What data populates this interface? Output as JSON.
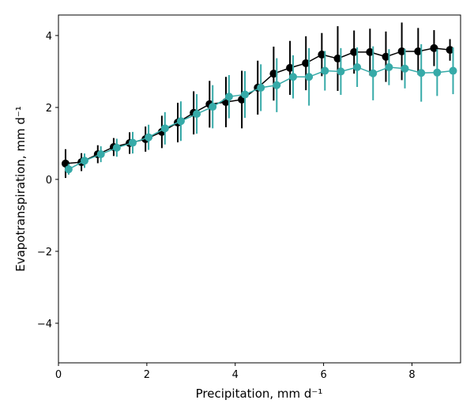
{
  "chart_data": {
    "type": "errorbar-line",
    "x_label": "Precipitation,  mm d⁻¹",
    "y_label": "Evapotranspiration,  mm d⁻¹",
    "xlim": [
      0,
      9.1
    ],
    "ylim": [
      -5.1,
      4.57
    ],
    "xticks": [
      0,
      2,
      4,
      6,
      8
    ],
    "yticks": [
      {
        "value": -4,
        "label": "−4"
      },
      {
        "value": -2,
        "label": "−2"
      },
      0,
      2,
      4
    ],
    "grid": false,
    "series": [
      {
        "color": "#000000",
        "x": [
          0.16,
          0.52,
          0.89,
          1.25,
          1.61,
          1.97,
          2.34,
          2.7,
          3.06,
          3.42,
          3.79,
          4.15,
          4.51,
          4.87,
          5.24,
          5.6,
          5.96,
          6.32,
          6.69,
          7.05,
          7.41,
          7.77,
          8.14,
          8.5,
          8.86
        ],
        "values": [
          0.44,
          0.48,
          0.7,
          0.9,
          1.01,
          1.12,
          1.32,
          1.58,
          1.85,
          2.09,
          2.15,
          2.22,
          2.55,
          2.94,
          3.1,
          3.23,
          3.47,
          3.36,
          3.54,
          3.54,
          3.41,
          3.56,
          3.56,
          3.65,
          3.6
        ],
        "errors": [
          0.4,
          0.25,
          0.25,
          0.25,
          0.3,
          0.35,
          0.45,
          0.55,
          0.6,
          0.65,
          0.7,
          0.8,
          0.75,
          0.75,
          0.75,
          0.75,
          0.6,
          0.9,
          0.6,
          0.65,
          0.7,
          0.8,
          0.65,
          0.5,
          0.3
        ]
      },
      {
        "color": "#36aaa8",
        "x": [
          0.23,
          0.59,
          0.96,
          1.32,
          1.68,
          2.04,
          2.41,
          2.77,
          3.13,
          3.49,
          3.86,
          4.22,
          4.58,
          4.94,
          5.31,
          5.67,
          6.03,
          6.39,
          6.76,
          7.12,
          7.48,
          7.84,
          8.21,
          8.57,
          8.93
        ],
        "values": [
          0.28,
          0.52,
          0.7,
          0.88,
          1.02,
          1.17,
          1.42,
          1.62,
          1.82,
          2.02,
          2.3,
          2.36,
          2.55,
          2.62,
          2.85,
          2.85,
          3.02,
          3.0,
          3.12,
          2.95,
          3.12,
          3.08,
          2.96,
          2.97,
          3.02
        ],
        "errors": [
          0.15,
          0.2,
          0.22,
          0.25,
          0.3,
          0.35,
          0.45,
          0.55,
          0.55,
          0.6,
          0.6,
          0.65,
          0.65,
          0.75,
          0.6,
          0.8,
          0.55,
          0.65,
          0.55,
          0.75,
          0.5,
          0.55,
          0.8,
          0.65,
          0.65
        ]
      }
    ]
  }
}
